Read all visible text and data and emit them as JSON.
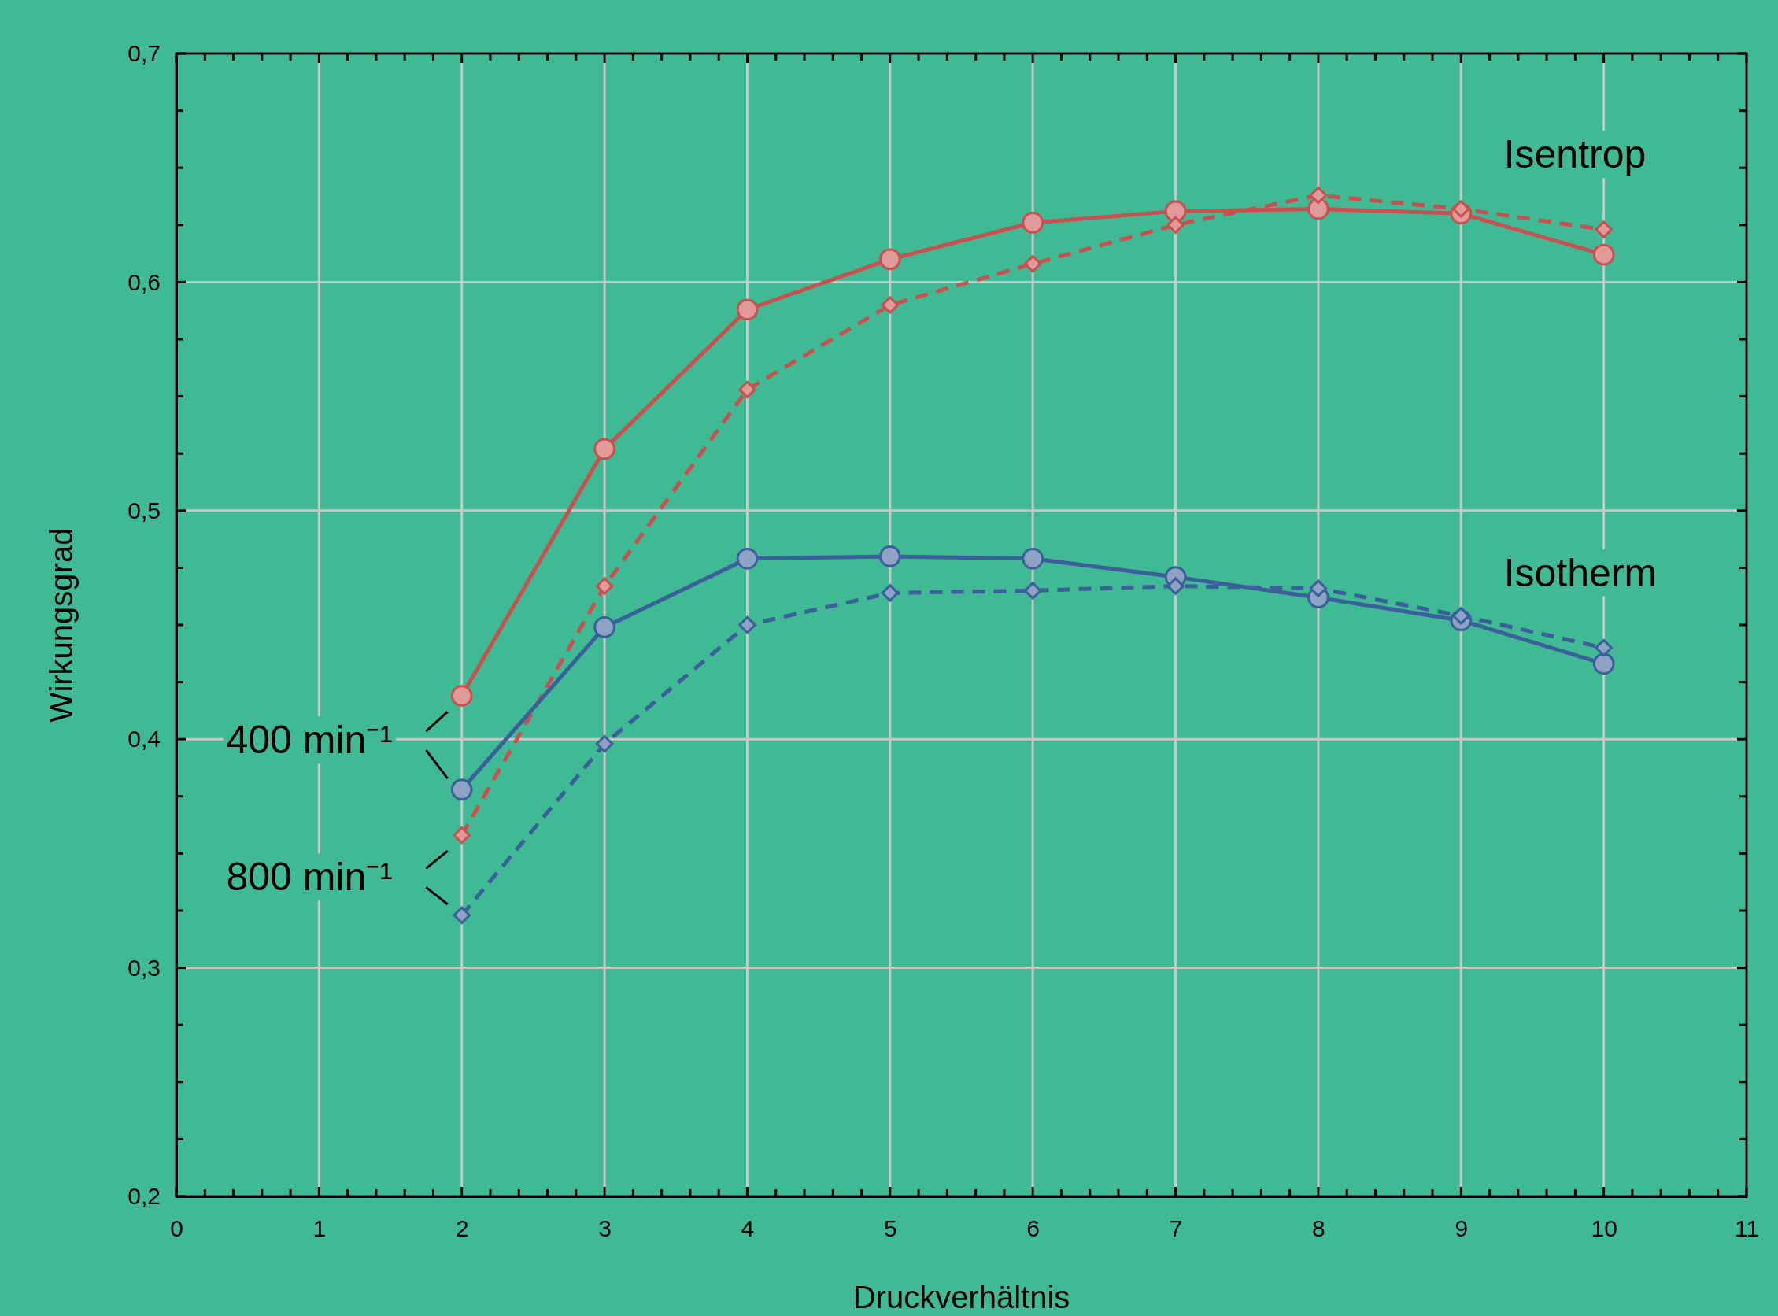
{
  "chart_data": {
    "type": "line",
    "xlabel": "Druckverhältnis",
    "ylabel": "Wirkungsgrad",
    "x": [
      2,
      3,
      4,
      5,
      6,
      7,
      8,
      9,
      10
    ],
    "xlim": [
      0,
      11
    ],
    "ylim": [
      0.2,
      0.7
    ],
    "xticks": [
      0,
      {
        "value": 0.2,
        "label": null
      },
      {
        "value": 0.4,
        "label": null
      },
      {
        "value": 0.6,
        "label": null
      },
      {
        "value": 0.8,
        "label": null
      },
      1,
      {
        "value": 1.2,
        "label": null
      },
      {
        "value": 1.4,
        "label": null
      },
      {
        "value": 1.6,
        "label": null
      },
      {
        "value": 1.8,
        "label": null
      },
      2,
      {
        "value": 2.2,
        "label": null
      },
      {
        "value": 2.4,
        "label": null
      },
      {
        "value": 2.6,
        "label": null
      },
      {
        "value": 2.8,
        "label": null
      },
      3,
      {
        "value": 3.2,
        "label": null
      },
      {
        "value": 3.4,
        "label": null
      },
      {
        "value": 3.6,
        "label": null
      },
      {
        "value": 3.8,
        "label": null
      },
      4,
      {
        "value": 4.2,
        "label": null
      },
      {
        "value": 4.4,
        "label": null
      },
      {
        "value": 4.6,
        "label": null
      },
      {
        "value": 4.8,
        "label": null
      },
      5,
      {
        "value": 5.2,
        "label": null
      },
      {
        "value": 5.4,
        "label": null
      },
      {
        "value": 5.6,
        "label": null
      },
      {
        "value": 5.8,
        "label": null
      },
      6,
      {
        "value": 6.2,
        "label": null
      },
      {
        "value": 6.4,
        "label": null
      },
      {
        "value": 6.6,
        "label": null
      },
      {
        "value": 6.8,
        "label": null
      },
      7,
      {
        "value": 7.2,
        "label": null
      },
      {
        "value": 7.4,
        "label": null
      },
      {
        "value": 7.6,
        "label": null
      },
      {
        "value": 7.8,
        "label": null
      },
      8,
      {
        "value": 8.2,
        "label": null
      },
      {
        "value": 8.4,
        "label": null
      },
      {
        "value": 8.6,
        "label": null
      },
      {
        "value": 8.8,
        "label": null
      },
      9,
      {
        "value": 9.2,
        "label": null
      },
      {
        "value": 9.4,
        "label": null
      },
      {
        "value": 9.6,
        "label": null
      },
      {
        "value": 9.8,
        "label": null
      },
      10,
      {
        "value": 10.2,
        "label": null
      },
      {
        "value": 10.4,
        "label": null
      },
      {
        "value": 10.6,
        "label": null
      },
      {
        "value": 10.8,
        "label": null
      },
      11
    ],
    "yticks": [
      {
        "value": 0.2,
        "label": "0,2"
      },
      {
        "value": 0.225,
        "label": null
      },
      {
        "value": 0.25,
        "label": null
      },
      {
        "value": 0.275,
        "label": null
      },
      {
        "value": 0.3,
        "label": "0,3"
      },
      {
        "value": 0.325,
        "label": null
      },
      {
        "value": 0.35,
        "label": null
      },
      {
        "value": 0.375,
        "label": null
      },
      {
        "value": 0.4,
        "label": "0,4"
      },
      {
        "value": 0.425,
        "label": null
      },
      {
        "value": 0.45,
        "label": null
      },
      {
        "value": 0.475,
        "label": null
      },
      {
        "value": 0.5,
        "label": "0,5"
      },
      {
        "value": 0.525,
        "label": null
      },
      {
        "value": 0.55,
        "label": null
      },
      {
        "value": 0.575,
        "label": null
      },
      {
        "value": 0.6,
        "label": "0,6"
      },
      {
        "value": 0.625,
        "label": null
      },
      {
        "value": 0.65,
        "label": null
      },
      {
        "value": 0.675,
        "label": null
      },
      {
        "value": 0.7,
        "label": "0,7"
      }
    ],
    "grid": true,
    "series": [
      {
        "color": "#c9504f",
        "marker": "circle",
        "line_style": "solid",
        "values": [
          0.419,
          0.527,
          0.588,
          0.61,
          0.626,
          0.631,
          0.632,
          0.63,
          0.612
        ]
      },
      {
        "color": "#c9504f",
        "marker": "diamond",
        "line_style": "dashed",
        "values": [
          0.358,
          0.467,
          0.553,
          0.59,
          0.608,
          0.625,
          0.638,
          0.632,
          0.623
        ]
      },
      {
        "color": "#3a5f9a",
        "marker": "circle",
        "line_style": "solid",
        "values": [
          0.378,
          0.449,
          0.479,
          0.48,
          0.479,
          0.471,
          0.462,
          0.452,
          0.433
        ]
      },
      {
        "color": "#3a5f9a",
        "marker": "diamond",
        "line_style": "dashed",
        "values": [
          0.323,
          0.398,
          0.45,
          0.464,
          0.465,
          0.467,
          0.466,
          0.454,
          0.44
        ]
      }
    ],
    "annotations": [
      "Isentrop",
      "Isotherm",
      "400 min⁻¹",
      "800 min⁻¹"
    ]
  }
}
